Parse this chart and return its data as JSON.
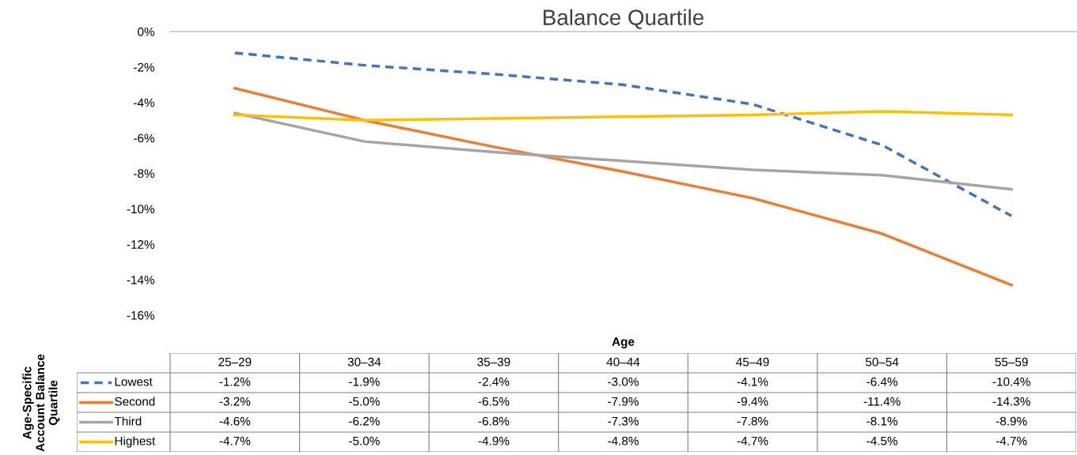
{
  "chart_data": {
    "type": "line",
    "title": "Balance Quartile",
    "xlabel": "Age",
    "legend_title": "Age-Specific Account Balance Quartile",
    "categories": [
      "25–29",
      "30–34",
      "35–39",
      "40–44",
      "45–49",
      "50–54",
      "55–59"
    ],
    "series": [
      {
        "name": "Lowest",
        "color": "#4472c4",
        "line_style": "dashed",
        "values": [
          -1.2,
          -1.9,
          -2.4,
          -3.0,
          -4.1,
          -6.4,
          -10.4
        ],
        "value_labels": [
          "-1.2%",
          "-1.9%",
          "-2.4%",
          "-3.0%",
          "-4.1%",
          "-6.4%",
          "-10.4%"
        ]
      },
      {
        "name": "Second",
        "color": "#ed7d31",
        "line_style": "solid",
        "values": [
          -3.2,
          -5.0,
          -6.5,
          -7.9,
          -9.4,
          -11.4,
          -14.3
        ],
        "value_labels": [
          "-3.2%",
          "-5.0%",
          "-6.5%",
          "-7.9%",
          "-9.4%",
          "-11.4%",
          "-14.3%"
        ]
      },
      {
        "name": "Third",
        "color": "#a5a5a5",
        "line_style": "solid",
        "values": [
          -4.6,
          -6.2,
          -6.8,
          -7.3,
          -7.8,
          -8.1,
          -8.9
        ],
        "value_labels": [
          "-4.6%",
          "-6.2%",
          "-6.8%",
          "-7.3%",
          "-7.8%",
          "-8.1%",
          "-8.9%"
        ]
      },
      {
        "name": "Highest",
        "color": "#ffc000",
        "line_style": "solid",
        "values": [
          -4.7,
          -5.0,
          -4.9,
          -4.8,
          -4.7,
          -4.5,
          -4.7
        ],
        "value_labels": [
          "-4.7%",
          "-5.0%",
          "-4.9%",
          "-4.8%",
          "-4.7%",
          "-4.5%",
          "-4.7%"
        ]
      }
    ],
    "ylim": [
      -16,
      0
    ],
    "yticks": [
      {
        "value": 0,
        "label": "0%"
      },
      {
        "value": -2,
        "label": "-2%"
      },
      {
        "value": -4,
        "label": "-4%"
      },
      {
        "value": -6,
        "label": "-6%"
      },
      {
        "value": -8,
        "label": "-8%"
      },
      {
        "value": -10,
        "label": "-10%"
      },
      {
        "value": -12,
        "label": "-12%"
      },
      {
        "value": -14,
        "label": "-14%"
      },
      {
        "value": -16,
        "label": "-16%"
      }
    ],
    "grid": false,
    "legend": "bottom",
    "marker": "none"
  }
}
